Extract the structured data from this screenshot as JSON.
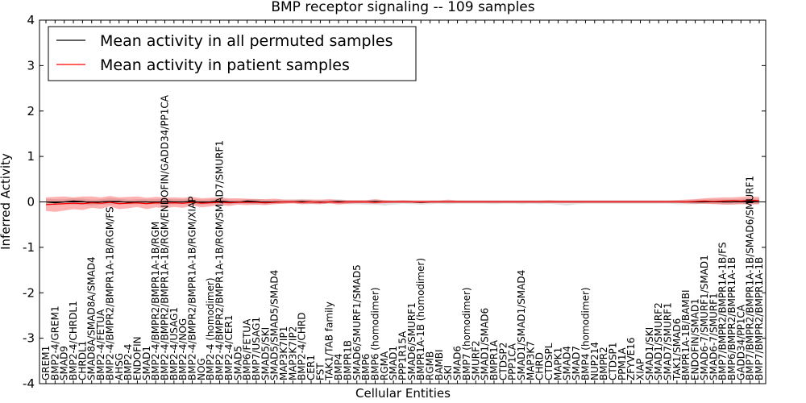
{
  "chart_data": {
    "type": "line",
    "title": "BMP receptor signaling -- 109 samples",
    "xlabel": "Cellular Entities",
    "ylabel": "Inferred Activity",
    "ylim": [
      -4,
      4
    ],
    "yticks": [
      -4,
      -3,
      -2,
      -1,
      0,
      1,
      2,
      3,
      4
    ],
    "legend_position": "top-left",
    "categories": [
      "GREM1",
      "BMP2-4/GREM1",
      "SMAD9",
      "BMP2-4/CHRDL1",
      "CHRDL1",
      "SMAD8A/SMAD8A/SMAD4",
      "BMP2-4/FETUA",
      "BMP2-4/BMPR2/BMPR1A-1B/RGM/FS",
      "AHSG",
      "BMP2-4",
      "ENDOFIN",
      "SMAD1",
      "BMP2-4/BMPR2/BMPR1A-1B/RGM",
      "BMP2-4/BMPR2/BMPR1A-1B/RGM/ENDOFIN/GADD34/PP1CA",
      "BMP2-4/USAG1",
      "BMP2-4/NOG",
      "BMP2-4/BMPR2/BMPR1A-1B/RGM/XIAP",
      "NOG",
      "BMP2-4 (homodimer)",
      "BMP2-4/BMPR2/BMPR1A-1B/RGM/SMAD7/SMURF1",
      "BMP2-4/CER1",
      "SMAD5",
      "BMP6/FETUA",
      "BMP7/USAG1",
      "SMAD5/SKI",
      "SMAD5/SMAD5/SMAD4",
      "MAP3K7IP1",
      "MAP3K7IP2",
      "BMP2-4/CHRD",
      "CER1",
      "FST",
      "TAK1/TAB family",
      "BMP4",
      "BMPR1B",
      "SMAD6/SMURF1/SMAD5",
      "BMP6",
      "BMP6 (homodimer)",
      "RGMA",
      "SMAD1",
      "PPP1R15A",
      "SMAD6/SMURF1",
      "BMPR1A-1B (homodimer)",
      "RGMB",
      "BAMBI",
      "SKI",
      "SMAD6",
      "BMP7 (homodimer)",
      "SMURF2",
      "SMAD1/SMAD6",
      "BMPR1A",
      "CTDSP2",
      "PPP1CA",
      "SMAD1/SMAD1/SMAD4",
      "MAP3K7",
      "CHRD",
      "CTDSPL",
      "MAPK1",
      "SMAD4",
      "SMAD7",
      "BMP4 (homodimer)",
      "NUP214",
      "BMPR2",
      "CTDSP1",
      "PPM1A",
      "ZFYVE16",
      "XIAP",
      "SMAD1/SKI",
      "SMAD1/SMURF2",
      "SMAD7/SMURF1",
      "TAK1/SMAD6",
      "BMPR1A-1B/BAMBI",
      "ENDOFIN/SMAD1",
      "SMAD6-7/SMURF1/SMAD1",
      "SMAD6-7/SMURF1",
      "BMP7/BMPR2/BMPR1A-1B/FS",
      "BMP6/BMPR2/BMPR1A-1B",
      "GADD34/PP1CA",
      "BMP7/BMPR2/BMPR1A-1B/SMAD6/SMURF1",
      "BMP7/BMPR2/BMPR1A-1B"
    ],
    "series": [
      {
        "name": "Mean activity in all permuted samples",
        "color": "#000000",
        "values": [
          0.0,
          -0.02,
          0.0,
          0.02,
          0.01,
          -0.02,
          0.0,
          0.01,
          0.01,
          -0.01,
          0.0,
          0.0,
          -0.01,
          0.01,
          0.0,
          0.0,
          0.01,
          -0.01,
          0.0,
          0.02,
          0.0,
          -0.01,
          0.02,
          0.01,
          -0.01,
          0.0,
          0.0,
          0.0,
          0.01,
          0.0,
          -0.01,
          0.0,
          0.01,
          0.0,
          0.0,
          0.0,
          0.01,
          0.0,
          0.0,
          0.0,
          0.0,
          -0.01,
          0.0,
          0.0,
          0.0,
          0.0,
          0.0,
          0.0,
          0.0,
          0.0,
          0.0,
          0.0,
          0.0,
          0.0,
          0.0,
          0.0,
          0.0,
          0.0,
          0.0,
          0.0,
          0.0,
          0.0,
          0.0,
          0.0,
          0.0,
          0.0,
          0.0,
          0.0,
          0.0,
          0.0,
          0.0,
          0.0,
          0.0,
          0.01,
          0.0,
          0.0,
          0.01,
          0.02,
          0.0
        ],
        "band_low": [
          -0.05,
          -0.07,
          -0.05,
          -0.06,
          -0.06,
          -0.08,
          -0.06,
          -0.06,
          -0.05,
          -0.05,
          -0.05,
          -0.05,
          -0.05,
          -0.06,
          -0.05,
          -0.05,
          -0.06,
          -0.06,
          -0.05,
          -0.05,
          -0.05,
          -0.04,
          -0.04,
          -0.05,
          -0.05,
          -0.04,
          -0.04,
          -0.03,
          -0.05,
          -0.05,
          -0.05,
          -0.04,
          -0.04,
          -0.05,
          -0.05,
          -0.06,
          -0.06,
          -0.08,
          -0.06,
          -0.04,
          -0.05,
          -0.06,
          -0.05,
          -0.04,
          -0.05,
          -0.04,
          -0.04,
          -0.04,
          -0.04,
          -0.05,
          -0.04,
          -0.04,
          -0.05,
          -0.04,
          -0.05,
          -0.04,
          -0.06,
          -0.08,
          -0.05,
          -0.04,
          -0.04,
          -0.04,
          -0.04,
          -0.04,
          -0.04,
          -0.04,
          -0.04,
          -0.04,
          -0.04,
          -0.05,
          -0.05,
          -0.05,
          -0.04,
          -0.04,
          -0.05,
          -0.05,
          -0.04,
          -0.05,
          -0.04
        ],
        "band_high": [
          0.07,
          0.06,
          0.06,
          0.08,
          0.07,
          0.05,
          0.06,
          0.08,
          0.07,
          0.05,
          0.06,
          0.06,
          0.06,
          0.07,
          0.06,
          0.06,
          0.07,
          0.05,
          0.06,
          0.08,
          0.05,
          0.05,
          0.06,
          0.07,
          0.05,
          0.05,
          0.05,
          0.05,
          0.06,
          0.05,
          0.04,
          0.05,
          0.06,
          0.04,
          0.04,
          0.04,
          0.05,
          0.04,
          0.04,
          0.04,
          0.04,
          0.04,
          0.04,
          0.04,
          0.04,
          0.04,
          0.04,
          0.04,
          0.04,
          0.04,
          0.04,
          0.04,
          0.04,
          0.04,
          0.04,
          0.04,
          0.04,
          0.04,
          0.04,
          0.04,
          0.04,
          0.04,
          0.04,
          0.04,
          0.04,
          0.04,
          0.04,
          0.04,
          0.04,
          0.04,
          0.04,
          0.05,
          0.05,
          0.06,
          0.06,
          0.06,
          0.07,
          0.08,
          0.07
        ]
      },
      {
        "name": "Mean activity in patient samples",
        "color": "#ff0000",
        "values": [
          -0.06,
          -0.05,
          -0.04,
          -0.03,
          -0.04,
          -0.02,
          -0.03,
          -0.01,
          -0.04,
          -0.03,
          -0.02,
          -0.04,
          -0.02,
          -0.03,
          -0.02,
          -0.03,
          -0.01,
          -0.03,
          -0.02,
          -0.01,
          -0.02,
          -0.01,
          -0.01,
          -0.01,
          -0.02,
          -0.01,
          0.0,
          0.0,
          -0.01,
          0.0,
          -0.01,
          0.0,
          -0.01,
          0.0,
          0.0,
          0.0,
          -0.01,
          0.0,
          0.0,
          0.0,
          0.0,
          0.0,
          0.0,
          0.0,
          0.0,
          0.0,
          0.0,
          0.0,
          0.0,
          0.0,
          0.0,
          0.0,
          0.0,
          0.0,
          0.0,
          0.0,
          0.0,
          0.0,
          0.0,
          0.0,
          0.0,
          0.0,
          0.0,
          0.0,
          0.0,
          0.0,
          0.0,
          0.0,
          0.0,
          0.0,
          0.0,
          0.01,
          0.02,
          0.01,
          0.02,
          0.03,
          0.02,
          0.04,
          0.03
        ],
        "band_low": [
          -0.2,
          -0.22,
          -0.19,
          -0.16,
          -0.18,
          -0.13,
          -0.15,
          -0.1,
          -0.16,
          -0.14,
          -0.11,
          -0.16,
          -0.12,
          -0.14,
          -0.11,
          -0.13,
          -0.08,
          -0.12,
          -0.1,
          -0.07,
          -0.09,
          -0.06,
          -0.07,
          -0.06,
          -0.07,
          -0.05,
          -0.04,
          -0.03,
          -0.05,
          -0.04,
          -0.05,
          -0.03,
          -0.06,
          -0.04,
          -0.03,
          -0.03,
          -0.04,
          -0.03,
          -0.02,
          -0.02,
          -0.02,
          -0.03,
          -0.02,
          -0.02,
          -0.02,
          -0.02,
          -0.02,
          -0.02,
          -0.02,
          -0.02,
          -0.02,
          -0.02,
          -0.02,
          -0.02,
          -0.02,
          -0.02,
          -0.02,
          -0.02,
          -0.02,
          -0.02,
          -0.02,
          -0.02,
          -0.02,
          -0.02,
          -0.02,
          -0.02,
          -0.02,
          -0.02,
          -0.02,
          -0.02,
          -0.03,
          -0.04,
          -0.04,
          -0.05,
          -0.06,
          -0.06,
          -0.05,
          -0.06,
          -0.05
        ],
        "band_high": [
          0.1,
          0.11,
          0.12,
          0.1,
          0.12,
          0.12,
          0.1,
          0.13,
          0.1,
          0.11,
          0.12,
          0.09,
          0.11,
          0.1,
          0.1,
          0.09,
          0.11,
          0.08,
          0.09,
          0.1,
          0.08,
          0.08,
          0.07,
          0.06,
          0.06,
          0.07,
          0.05,
          0.05,
          0.05,
          0.05,
          0.05,
          0.06,
          0.04,
          0.04,
          0.04,
          0.04,
          0.06,
          0.04,
          0.03,
          0.04,
          0.03,
          0.03,
          0.03,
          0.03,
          0.05,
          0.03,
          0.03,
          0.03,
          0.03,
          0.03,
          0.03,
          0.03,
          0.03,
          0.03,
          0.03,
          0.04,
          0.03,
          0.03,
          0.03,
          0.03,
          0.03,
          0.03,
          0.03,
          0.03,
          0.03,
          0.03,
          0.03,
          0.03,
          0.03,
          0.04,
          0.05,
          0.06,
          0.08,
          0.09,
          0.1,
          0.1,
          0.11,
          0.12,
          0.11
        ]
      }
    ]
  }
}
